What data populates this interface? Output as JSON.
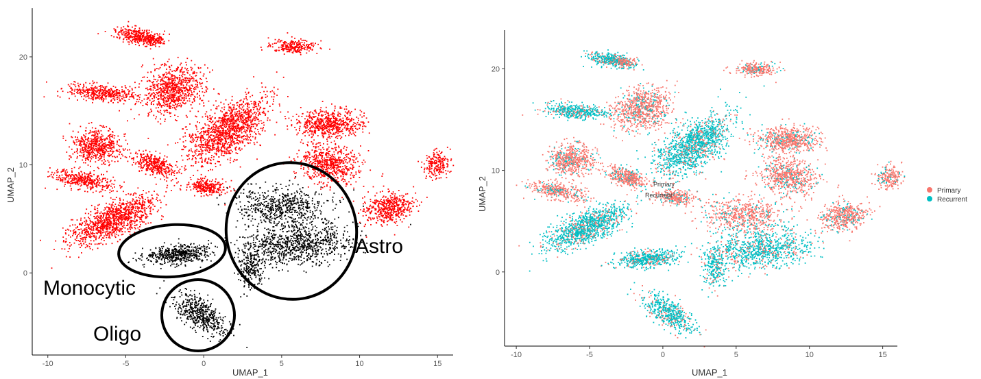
{
  "colors": {
    "left_points": "#ff0000",
    "left_highlight": "#000000",
    "primary": "#f8766d",
    "recurrent": "#00bfc4"
  },
  "chart_data": [
    {
      "type": "scatter",
      "xlabel": "UMAP_1",
      "ylabel": "UMAP_2",
      "xticks": [
        -10,
        -5,
        0,
        5,
        10,
        15
      ],
      "yticks": [
        0,
        10,
        20
      ],
      "xlim": [
        -11,
        16
      ],
      "ylim": [
        -7.6,
        24.5
      ],
      "grid": false,
      "annotations": [
        "Monocytic",
        "Oligo",
        "Astro"
      ],
      "highlighted_groups": [
        {
          "name": "Monocytic",
          "center": [
            -2,
            1.7
          ]
        },
        {
          "name": "Oligo",
          "center": [
            -0.6,
            -4
          ]
        },
        {
          "name": "Astro",
          "center": [
            5,
            2.5
          ]
        }
      ]
    },
    {
      "type": "scatter",
      "xlabel": "UMAP_1",
      "ylabel": "UMAP_2",
      "xticks": [
        -10,
        -5,
        0,
        5,
        10,
        15
      ],
      "yticks": [
        0,
        10,
        20
      ],
      "xlim": [
        -10.8,
        16
      ],
      "ylim": [
        -7.3,
        23.8
      ],
      "grid": false,
      "legend_position": "right",
      "series": [
        {
          "name": "Primary",
          "color": "#f8766d"
        },
        {
          "name": "Recurrent",
          "color": "#00bfc4"
        }
      ],
      "inline_labels": [
        "Primary",
        "Recurrent"
      ]
    }
  ]
}
